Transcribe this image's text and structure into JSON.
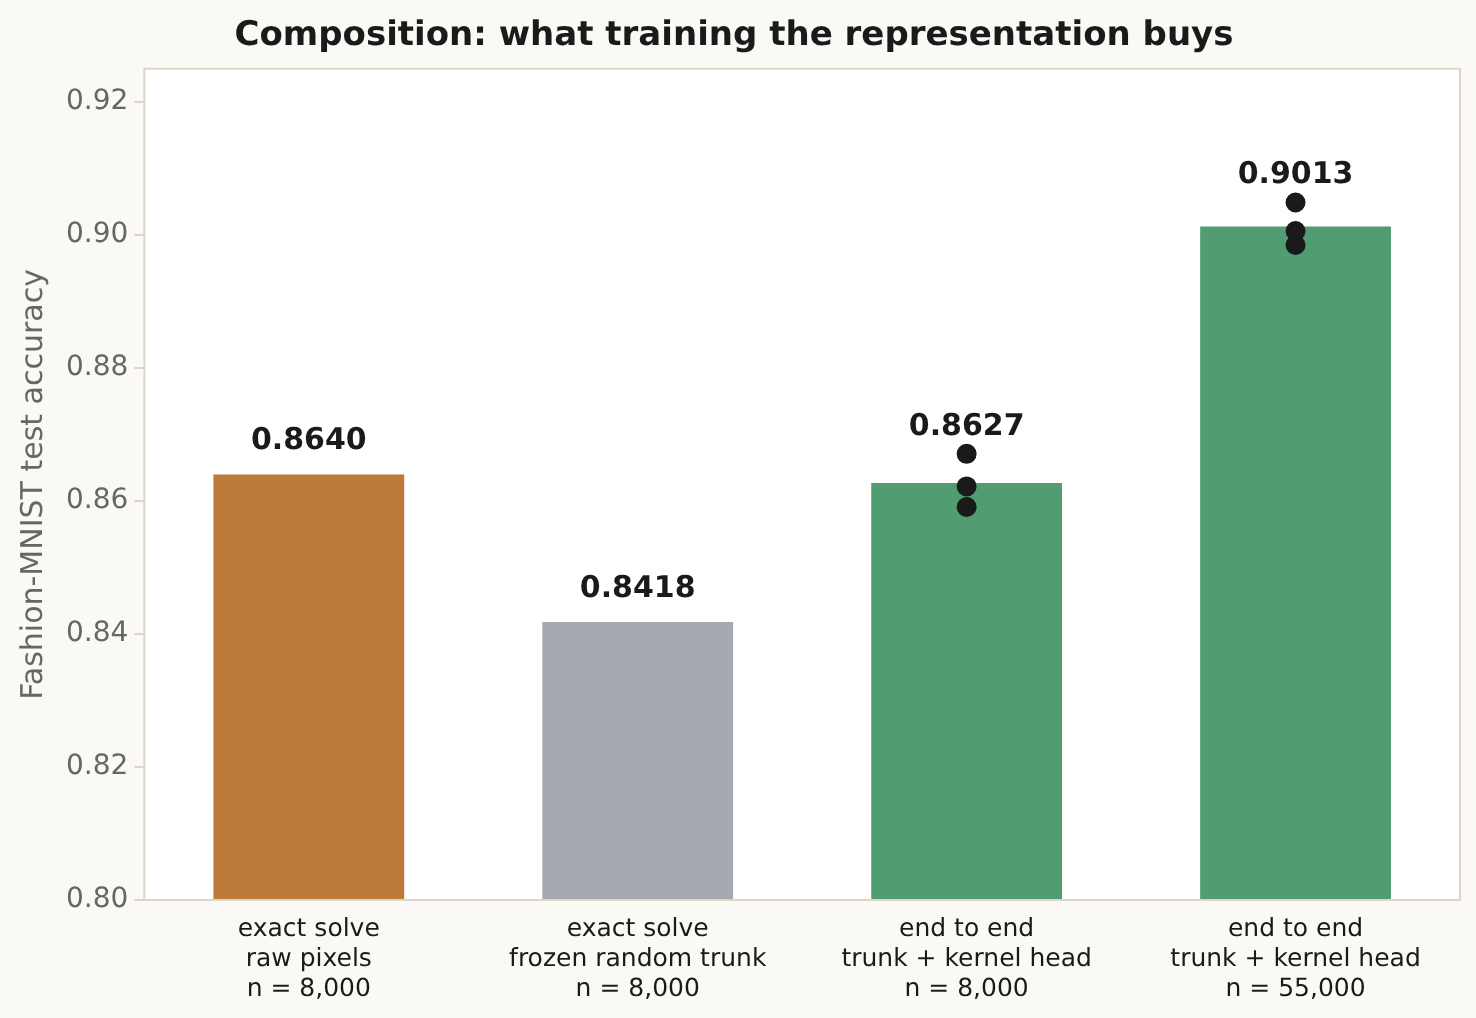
{
  "chart_data": {
    "type": "bar",
    "title": "Composition: what training the representation buys",
    "ylabel": "Fashion-MNIST test accuracy",
    "categories": [
      "exact solve\nraw pixels\nn = 8,000",
      "exact solve\nfrozen random trunk\nn = 8,000",
      "end to end\ntrunk + kernel head\nn = 8,000",
      "end to end\ntrunk + kernel head\nn = 55,000"
    ],
    "series": [
      {
        "colors": [
          "#bd7a3a",
          "#a6a9b0",
          "#519c70",
          "#519c70"
        ],
        "values": [
          0.864,
          0.8418,
          0.8627,
          0.9013
        ],
        "value_labels": [
          "0.8640",
          "0.8418",
          "0.8627",
          "0.9013"
        ]
      },
      {
        "type": "scatter",
        "color": "#1a1a1a",
        "x": [
          "end to end\ntrunk + kernel head\nn = 8,000",
          "end to end\ntrunk + kernel head\nn = 8,000",
          "end to end\ntrunk + kernel head\nn = 8,000",
          "end to end\ntrunk + kernel head\nn = 55,000",
          "end to end\ntrunk + kernel head\nn = 55,000",
          "end to end\ntrunk + kernel head\nn = 55,000"
        ],
        "values": [
          0.8671,
          0.8622,
          0.8591,
          0.9049,
          0.9006,
          0.8985
        ]
      }
    ],
    "ylim": [
      0.8,
      0.925
    ],
    "yticks": [
      {
        "value": 0.8,
        "label": "0.80"
      },
      0.82,
      0.84,
      0.86,
      0.88,
      {
        "value": 0.9,
        "label": "0.90"
      },
      0.92
    ],
    "grid": false,
    "legend": false,
    "marker": "circle"
  }
}
